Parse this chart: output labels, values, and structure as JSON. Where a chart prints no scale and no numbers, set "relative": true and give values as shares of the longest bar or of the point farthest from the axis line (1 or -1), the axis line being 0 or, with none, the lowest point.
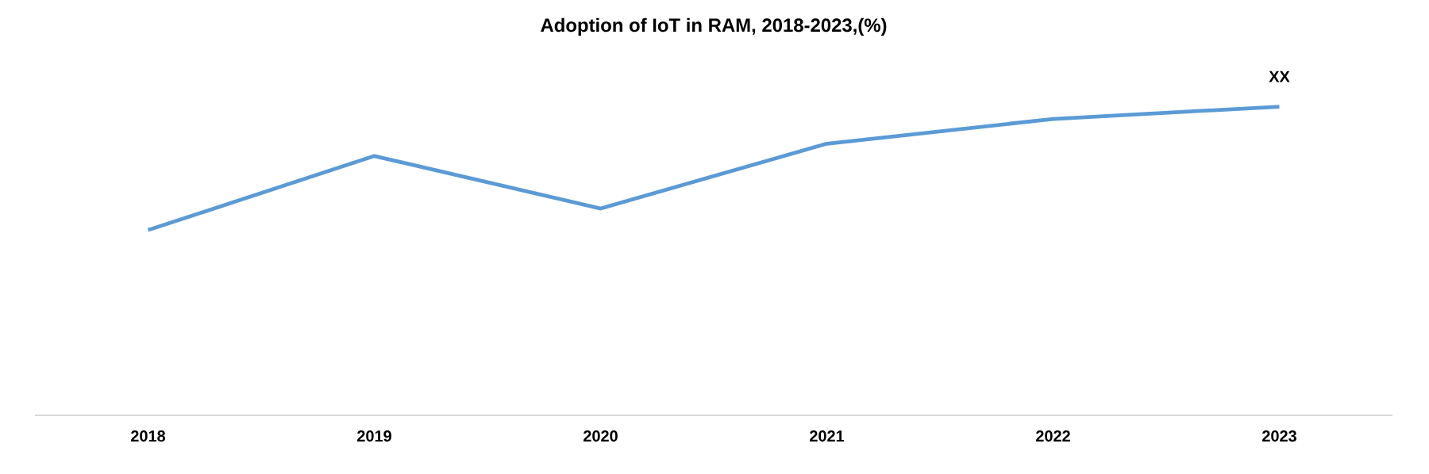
{
  "chart_data": {
    "type": "line",
    "title": "Adoption of IoT in RAM, 2018-2023,(%)",
    "categories": [
      "2018",
      "2019",
      "2020",
      "2021",
      "2022",
      "2023"
    ],
    "values": [
      0.6,
      0.84,
      0.67,
      0.88,
      0.96,
      1
    ],
    "color": "#5b9bd5",
    "relative": true,
    "annotations": [
      {
        "text": "XX",
        "x": "2023",
        "y": 1
      }
    ]
  }
}
